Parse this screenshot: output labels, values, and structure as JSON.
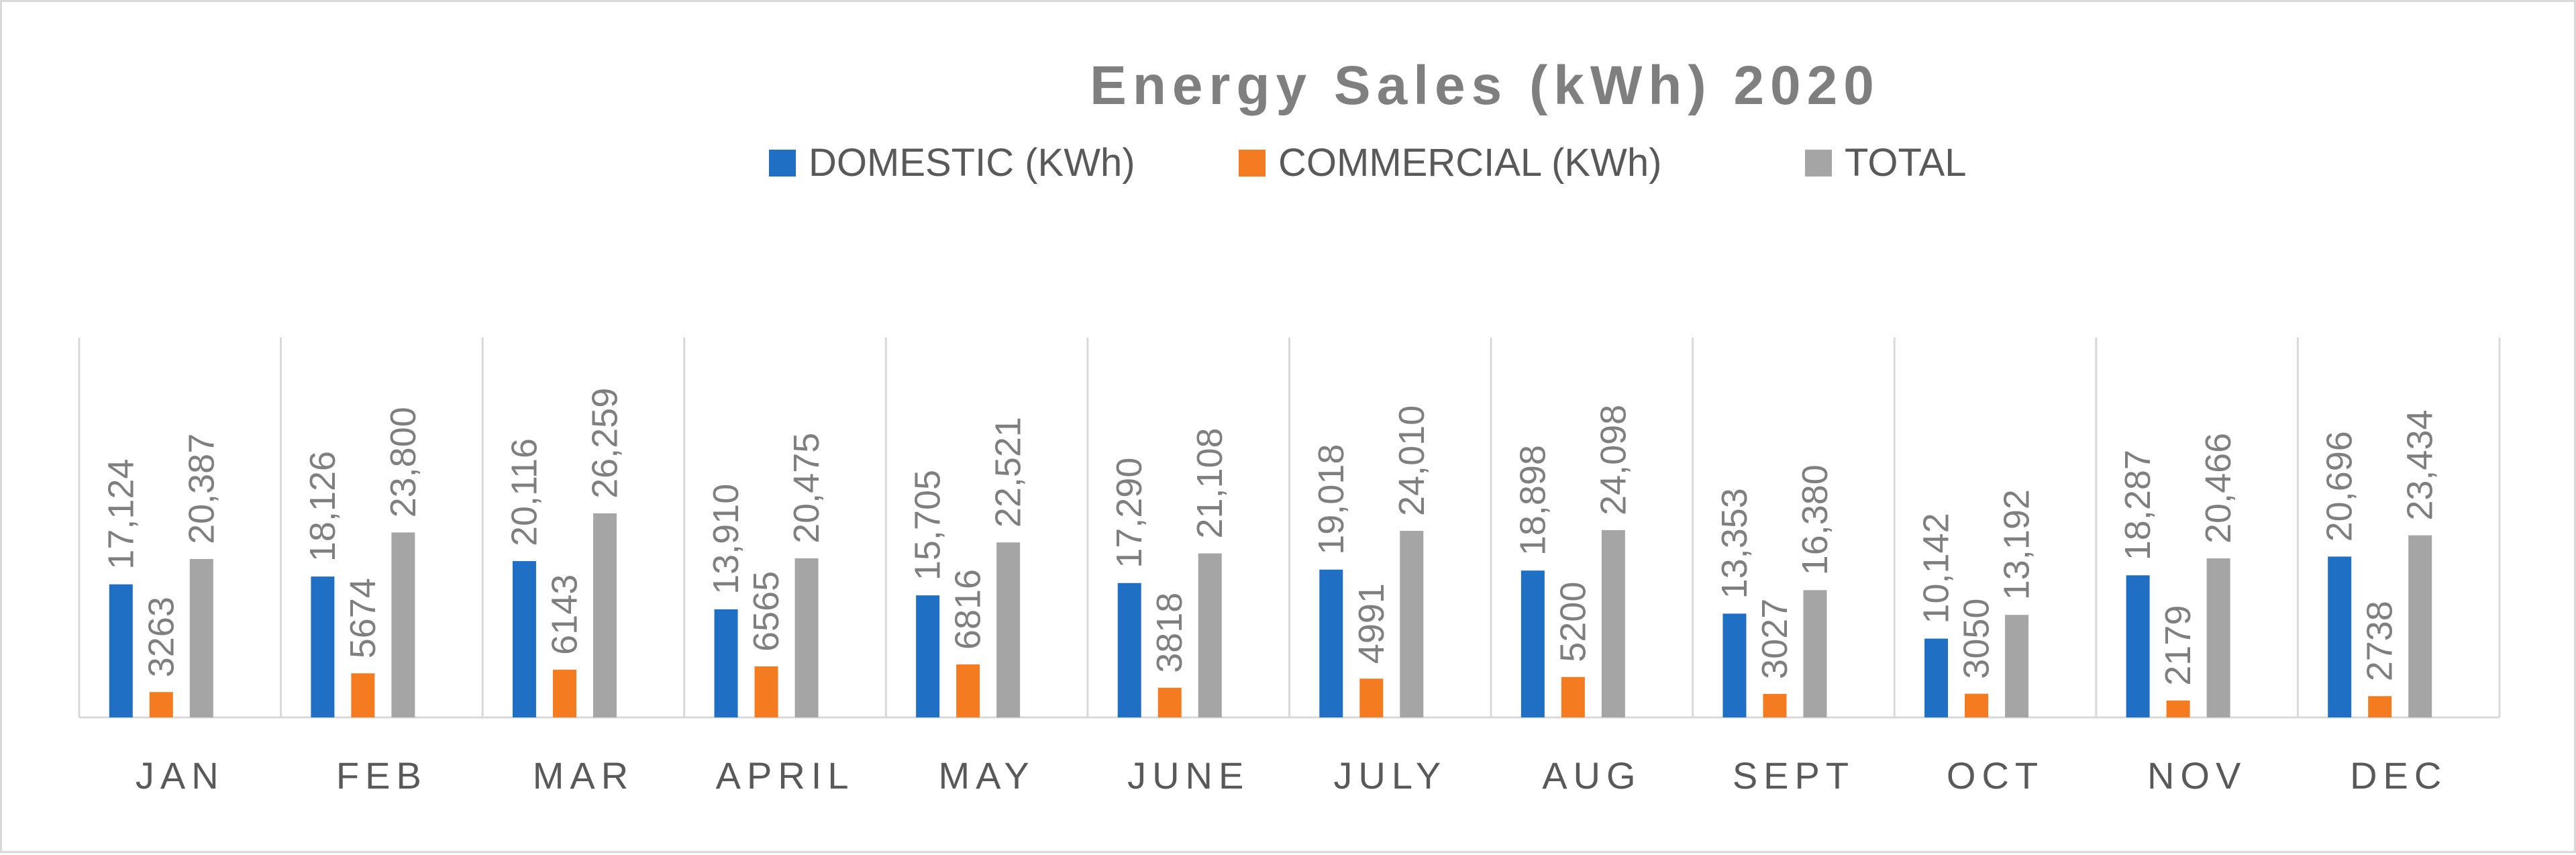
{
  "chart_data": {
    "type": "bar",
    "title": "Energy Sales (kWh) 2020",
    "xlabel": "",
    "ylabel": "",
    "ylim": [
      0,
      30000
    ],
    "grid": "vertical category separators",
    "legend_position": "top-center",
    "categories": [
      "JAN",
      "FEB",
      "MAR",
      "APRIL",
      "MAY",
      "JUNE",
      "JULY",
      "AUG",
      "SEPT",
      "OCT",
      "NOV",
      "DEC"
    ],
    "series": [
      {
        "name": "DOMESTIC (KWh)",
        "color": "#1f6fc5",
        "values": [
          17124,
          18126,
          20116,
          13910,
          15705,
          17290,
          19018,
          18898,
          13353,
          10142,
          18287,
          20696
        ],
        "labels": [
          "17,124",
          "18,126",
          "20,116",
          "13,910",
          "15,705",
          "17,290",
          "19,018",
          "18,898",
          "13,353",
          "10,142",
          "18,287",
          "20,696"
        ]
      },
      {
        "name": "COMMERCIAL (KWh)",
        "color": "#f47b20",
        "values": [
          3263,
          5674,
          6143,
          6565,
          6816,
          3818,
          4991,
          5200,
          3027,
          3050,
          2179,
          2738
        ],
        "labels": [
          "3263",
          "5674",
          "6143",
          "6565",
          "6816",
          "3818",
          "4991",
          "5200",
          "3027",
          "3050",
          "2179",
          "2738"
        ]
      },
      {
        "name": "TOTAL",
        "color": "#a5a5a5",
        "values": [
          20387,
          23800,
          26259,
          20475,
          22521,
          21108,
          24010,
          24098,
          16380,
          13192,
          20466,
          23434
        ],
        "labels": [
          "20,387",
          "23,800",
          "26,259",
          "20,475",
          "22,521",
          "21,108",
          "24,010",
          "24,098",
          "16,380",
          "13,192",
          "20,466",
          "23,434"
        ]
      }
    ]
  }
}
